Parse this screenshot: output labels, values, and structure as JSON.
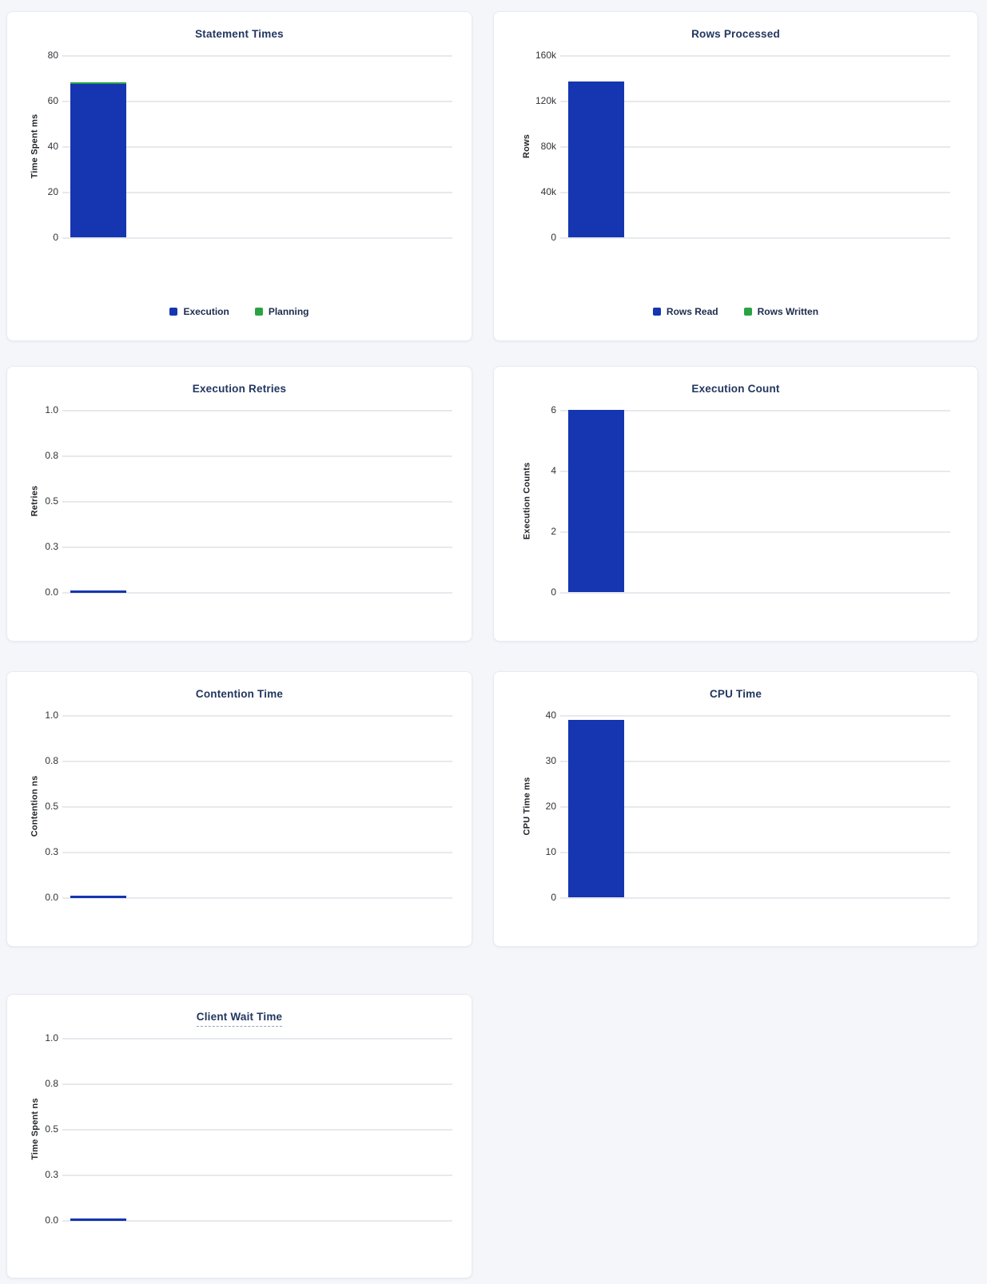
{
  "colors": {
    "bar_blue": "#1536b0",
    "bar_green": "#2ba345"
  },
  "chart_data": [
    {
      "type": "bar",
      "title": "Statement Times",
      "ylabel": "Time Spent ms",
      "categories": [
        ""
      ],
      "ylim": [
        0,
        80
      ],
      "yticks": [
        0,
        20,
        40,
        60,
        80
      ],
      "ytick_labels": [
        "0",
        "20",
        "40",
        "60",
        "80"
      ],
      "grid": true,
      "stacked": true,
      "legend": true,
      "legend_position": "bottom",
      "series": [
        {
          "name": "Execution",
          "color": "#1536b0",
          "values": [
            67.3
          ]
        },
        {
          "name": "Planning",
          "color": "#2ba345",
          "values": [
            0.9
          ]
        }
      ]
    },
    {
      "type": "bar",
      "title": "Rows Processed",
      "ylabel": "Rows",
      "categories": [
        ""
      ],
      "ylim": [
        0,
        160000
      ],
      "yticks": [
        0,
        40000,
        80000,
        120000,
        160000
      ],
      "ytick_labels": [
        "0",
        "40k",
        "80k",
        "120k",
        "160k"
      ],
      "grid": true,
      "stacked": true,
      "legend": true,
      "legend_position": "bottom",
      "series": [
        {
          "name": "Rows Read",
          "color": "#1536b0",
          "values": [
            137000
          ]
        },
        {
          "name": "Rows Written",
          "color": "#2ba345",
          "values": [
            0
          ]
        }
      ]
    },
    {
      "type": "bar",
      "title": "Execution Retries",
      "ylabel": "Retries",
      "categories": [
        ""
      ],
      "ylim": [
        0,
        1
      ],
      "yticks": [
        0,
        0.25,
        0.5,
        0.75,
        1
      ],
      "ytick_labels": [
        "0.0",
        "0.3",
        "0.5",
        "0.8",
        "1.0"
      ],
      "grid": true,
      "stacked": false,
      "legend": false,
      "series": [
        {
          "color": "#1536b0",
          "values": [
            0
          ]
        }
      ]
    },
    {
      "type": "bar",
      "title": "Execution Count",
      "ylabel": "Execution Counts",
      "categories": [
        ""
      ],
      "ylim": [
        0,
        6
      ],
      "yticks": [
        0,
        2,
        4,
        6
      ],
      "ytick_labels": [
        "0",
        "2",
        "4",
        "6"
      ],
      "grid": true,
      "stacked": false,
      "legend": false,
      "series": [
        {
          "color": "#1536b0",
          "values": [
            6
          ]
        }
      ]
    },
    {
      "type": "bar",
      "title": "Contention Time",
      "ylabel": "Contention ns",
      "categories": [
        ""
      ],
      "ylim": [
        0,
        1
      ],
      "yticks": [
        0,
        0.25,
        0.5,
        0.75,
        1
      ],
      "ytick_labels": [
        "0.0",
        "0.3",
        "0.5",
        "0.8",
        "1.0"
      ],
      "grid": true,
      "stacked": false,
      "legend": false,
      "series": [
        {
          "color": "#1536b0",
          "values": [
            0
          ]
        }
      ]
    },
    {
      "type": "bar",
      "title": "CPU Time",
      "ylabel": "CPU Time ms",
      "categories": [
        ""
      ],
      "ylim": [
        0,
        40
      ],
      "yticks": [
        0,
        10,
        20,
        30,
        40
      ],
      "ytick_labels": [
        "0",
        "10",
        "20",
        "30",
        "40"
      ],
      "grid": true,
      "stacked": false,
      "legend": false,
      "series": [
        {
          "color": "#1536b0",
          "values": [
            39
          ]
        }
      ]
    },
    {
      "type": "bar",
      "title": "Client Wait Time",
      "ylabel": "Time Spent ns",
      "categories": [
        ""
      ],
      "ylim": [
        0,
        1
      ],
      "yticks": [
        0,
        0.25,
        0.5,
        0.75,
        1
      ],
      "ytick_labels": [
        "0.0",
        "0.3",
        "0.5",
        "0.8",
        "1.0"
      ],
      "grid": true,
      "stacked": false,
      "legend": false,
      "title_has_tooltip_underline": true,
      "series": [
        {
          "color": "#1536b0",
          "values": [
            0
          ]
        }
      ]
    }
  ]
}
